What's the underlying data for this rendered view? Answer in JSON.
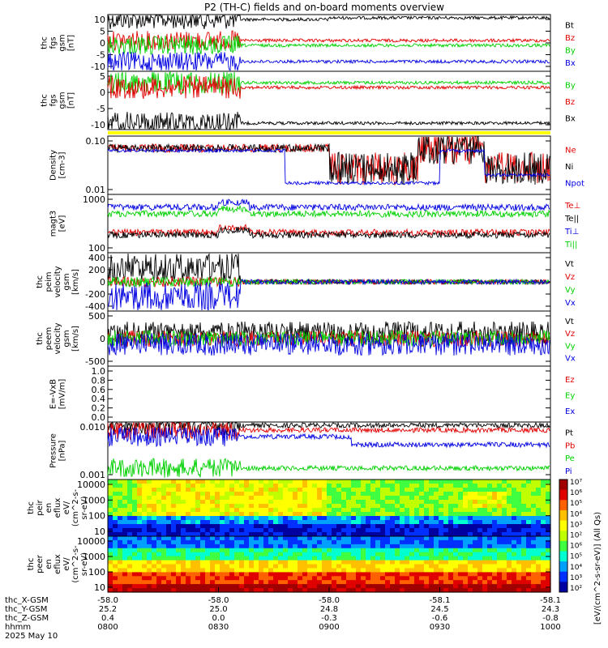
{
  "title": "P2 (TH-C) fields and on-board moments overview",
  "colors": {
    "black": "#000000",
    "red": "#e00000",
    "green": "#00d000",
    "blue": "#0000e0",
    "yellow": "#ffff00"
  },
  "chart_data": {
    "type": "line",
    "time_range": [
      "0800",
      "1000"
    ],
    "panels": [
      {
        "id": "fgs_gsm",
        "ylabel": [
          "thc",
          "fgs",
          "gsm",
          "[nT]"
        ],
        "ylim": [
          -11,
          11
        ],
        "yticks": [
          "10",
          "5",
          "0",
          "-5",
          "-10"
        ],
        "series": [
          {
            "name": "Bt",
            "color": "black"
          },
          {
            "name": "Bz",
            "color": "red"
          },
          {
            "name": "By",
            "color": "green"
          },
          {
            "name": "Bx",
            "color": "blue"
          }
        ]
      },
      {
        "id": "fgs_gsm2",
        "ylabel": [
          "thc",
          "fgs",
          "gsm",
          "[nT]"
        ],
        "ylim": [
          -13,
          6
        ],
        "yticks": [
          "5",
          "0",
          "-5",
          "-10"
        ],
        "series": [
          {
            "name": "By",
            "color": "green"
          },
          {
            "name": "Bz",
            "color": "red"
          },
          {
            "name": "Bx",
            "color": "black"
          }
        ]
      },
      {
        "id": "density",
        "ylabel": [
          "Density",
          "[cm-3]"
        ],
        "yticks": [
          "0.10",
          "0.01"
        ],
        "series": [
          {
            "name": "Ne",
            "color": "red"
          },
          {
            "name": "Ni",
            "color": "black"
          },
          {
            "name": "Npot",
            "color": "blue"
          }
        ]
      },
      {
        "id": "temp",
        "ylabel": [
          "magt3",
          "[eV]"
        ],
        "yticks": [
          "1000",
          "100"
        ],
        "series": [
          {
            "name": "Te⊥",
            "color": "red"
          },
          {
            "name": "Te||",
            "color": "black"
          },
          {
            "name": "Ti⊥",
            "color": "blue"
          },
          {
            "name": "Ti||",
            "color": "green"
          }
        ]
      },
      {
        "id": "peim",
        "ylabel": [
          "thc",
          "peim",
          "velocity",
          "gsm",
          "[km/s]"
        ],
        "yticks": [
          "400",
          "200",
          "0",
          "-200",
          "-400"
        ],
        "series": [
          {
            "name": "Vt",
            "color": "black"
          },
          {
            "name": "Vz",
            "color": "red"
          },
          {
            "name": "Vy",
            "color": "green"
          },
          {
            "name": "Vx",
            "color": "blue"
          }
        ]
      },
      {
        "id": "peem",
        "ylabel": [
          "thc",
          "peem",
          "velocity",
          "gsm",
          "[km/s]"
        ],
        "yticks": [
          "500",
          "0",
          "-500"
        ],
        "series": [
          {
            "name": "Vt",
            "color": "black"
          },
          {
            "name": "Vz",
            "color": "red"
          },
          {
            "name": "Vy",
            "color": "green"
          },
          {
            "name": "Vx",
            "color": "blue"
          }
        ]
      },
      {
        "id": "efield",
        "ylabel": [
          "E=-VxB",
          "[mV/m]"
        ],
        "yticks": [
          "1.0",
          "0.8",
          "0.6",
          "0.4",
          "0.2",
          "0.0"
        ],
        "series": [
          {
            "name": "Ez",
            "color": "red"
          },
          {
            "name": "Ey",
            "color": "green"
          },
          {
            "name": "Ex",
            "color": "blue"
          }
        ]
      },
      {
        "id": "pressure",
        "ylabel": [
          "Pressure",
          "[nPa]"
        ],
        "yticks": [
          "0.010",
          "0.001"
        ],
        "series": [
          {
            "name": "Pt",
            "color": "black"
          },
          {
            "name": "Pb",
            "color": "red"
          },
          {
            "name": "Pe",
            "color": "green"
          },
          {
            "name": "Pi",
            "color": "blue"
          }
        ]
      },
      {
        "id": "peir",
        "type": "heatmap",
        "ylabel": [
          "thc",
          "peir",
          "en",
          "eflux",
          "eV/",
          "(cm^2-s-",
          "sr-eV)"
        ],
        "yticks": [
          "10000",
          "1000",
          "100",
          "10"
        ]
      },
      {
        "id": "peer",
        "type": "heatmap",
        "ylabel": [
          "thc",
          "peer",
          "en",
          "eflux",
          "eV/",
          "(cm^2-s-",
          "sr-eV)"
        ],
        "yticks": [
          "10000",
          "1000",
          "100",
          "10"
        ]
      }
    ],
    "colorbar": {
      "ticks": [
        "10⁷",
        "10⁶",
        "10⁵",
        "10⁴",
        "10³",
        "10²",
        "10⁶",
        "10⁵",
        "10⁴",
        "10³",
        "10²"
      ],
      "label": "[eV/(cm^2-s-sr-eV)] (All Qs)"
    },
    "orbit_rows": [
      {
        "label": "thc_X-GSM",
        "values": [
          "-58.0",
          "-58.0",
          "-58.0",
          "-58.1",
          "-58.1"
        ]
      },
      {
        "label": "thc_Y-GSM",
        "values": [
          "25.2",
          "25.0",
          "24.8",
          "24.5",
          "24.3"
        ]
      },
      {
        "label": "thc_Z-GSM",
        "values": [
          "0.4",
          "0.0",
          "-0.3",
          "-0.6",
          "-0.8"
        ]
      },
      {
        "label": "hhmm",
        "values": [
          "0800",
          "0830",
          "0900",
          "0930",
          "1000"
        ]
      }
    ],
    "date": "2025 May 10"
  }
}
